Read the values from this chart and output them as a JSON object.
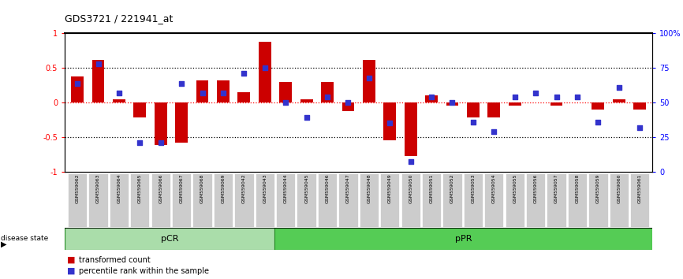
{
  "title": "GDS3721 / 221941_at",
  "samples": [
    "GSM559062",
    "GSM559063",
    "GSM559064",
    "GSM559065",
    "GSM559066",
    "GSM559067",
    "GSM559068",
    "GSM559069",
    "GSM559042",
    "GSM559043",
    "GSM559044",
    "GSM559045",
    "GSM559046",
    "GSM559047",
    "GSM559048",
    "GSM559049",
    "GSM559050",
    "GSM559051",
    "GSM559052",
    "GSM559053",
    "GSM559054",
    "GSM559055",
    "GSM559056",
    "GSM559057",
    "GSM559058",
    "GSM559059",
    "GSM559060",
    "GSM559061"
  ],
  "transformed_count": [
    0.38,
    0.62,
    0.05,
    -0.22,
    -0.62,
    -0.58,
    0.32,
    0.32,
    0.15,
    0.88,
    0.3,
    0.05,
    0.3,
    -0.12,
    0.62,
    -0.55,
    -0.78,
    0.1,
    -0.05,
    -0.22,
    -0.22,
    -0.05,
    0.0,
    -0.05,
    0.0,
    -0.1,
    0.05,
    -0.1
  ],
  "percentile_rank_pct": [
    64,
    78,
    57,
    21,
    21,
    64,
    57,
    57,
    71,
    75,
    50,
    39,
    54,
    50,
    68,
    35,
    7,
    54,
    50,
    36,
    29,
    54,
    57,
    54,
    54,
    36,
    61,
    32
  ],
  "pcr_count": 10,
  "ppr_count": 18,
  "bar_color": "#cc0000",
  "dot_color": "#3333cc",
  "pcr_color": "#aaddaa",
  "ppr_color": "#55cc55",
  "tick_bg_color": "#cccccc",
  "background_color": "#ffffff"
}
